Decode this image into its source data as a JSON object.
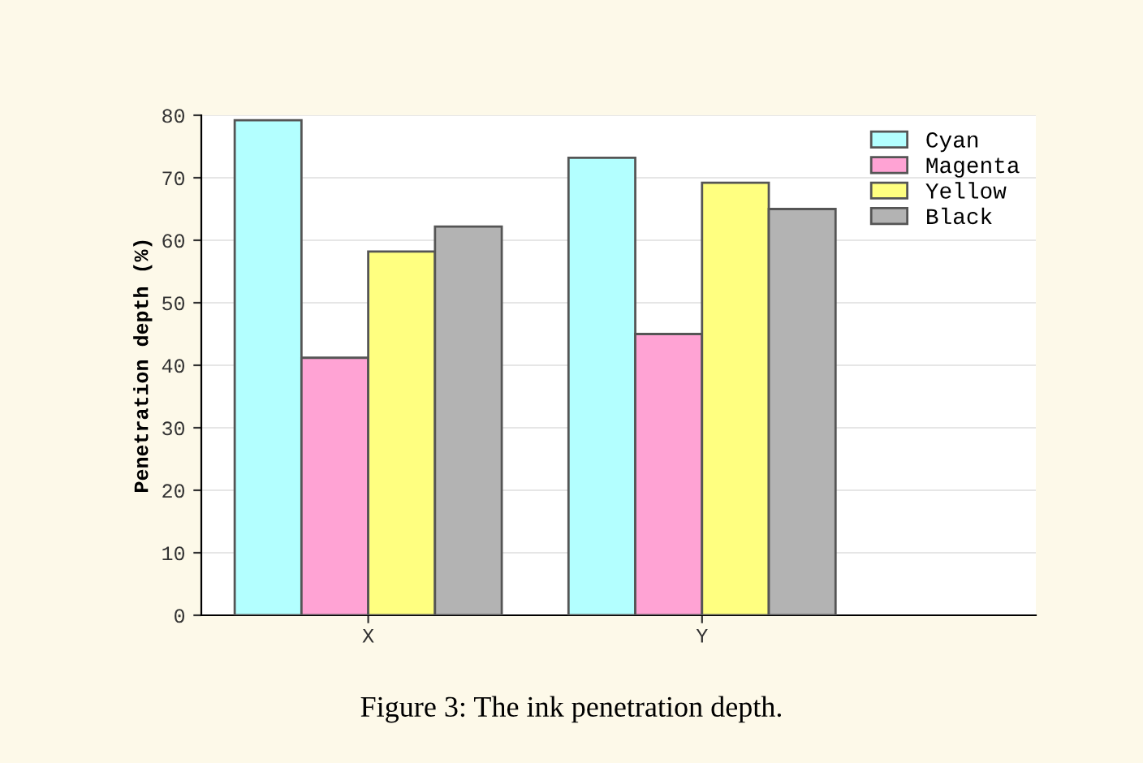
{
  "chart_data": {
    "type": "bar",
    "ylabel": "Penetration depth (%)",
    "categories": [
      "X",
      "Y"
    ],
    "series": [
      {
        "name": "Cyan",
        "color": "#b3ffff",
        "values": [
          79.2,
          73.2
        ]
      },
      {
        "name": "Magenta",
        "color": "#ffa3d4",
        "values": [
          41.2,
          45.0
        ]
      },
      {
        "name": "Yellow",
        "color": "#ffff80",
        "values": [
          58.2,
          69.2
        ]
      },
      {
        "name": "Black",
        "color": "#b3b3b3",
        "values": [
          62.2,
          65.0
        ]
      }
    ],
    "ylim": [
      0,
      80
    ],
    "yticks": [
      0,
      10,
      20,
      30,
      40,
      50,
      60,
      70,
      80
    ],
    "grid": "y",
    "legend": "top right",
    "annotations": [
      "Figure 3: The ink penetration depth."
    ]
  }
}
